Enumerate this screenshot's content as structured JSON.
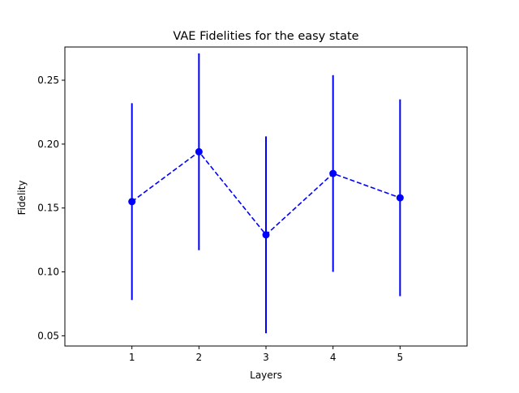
{
  "chart_data": {
    "type": "line",
    "title": "VAE Fidelities for the easy state",
    "xlabel": "Layers",
    "ylabel": "Fidelity",
    "xlim": [
      0,
      6
    ],
    "ylim": [
      0.042,
      0.276
    ],
    "xticks": [
      1,
      2,
      3,
      4,
      5
    ],
    "yticks": [
      0.05,
      0.1,
      0.15,
      0.2,
      0.25
    ],
    "ytick_labels": [
      "0.05",
      "0.10",
      "0.15",
      "0.20",
      "0.25"
    ],
    "grid": false,
    "series": [
      {
        "x": [
          1,
          2,
          3,
          4,
          5
        ],
        "y": [
          0.155,
          0.194,
          0.129,
          0.177,
          0.158
        ],
        "yerr": [
          0.077,
          0.077,
          0.077,
          0.077,
          0.077
        ],
        "color": "#0000ff",
        "linestyle": "dashed",
        "marker": "circle"
      }
    ]
  }
}
